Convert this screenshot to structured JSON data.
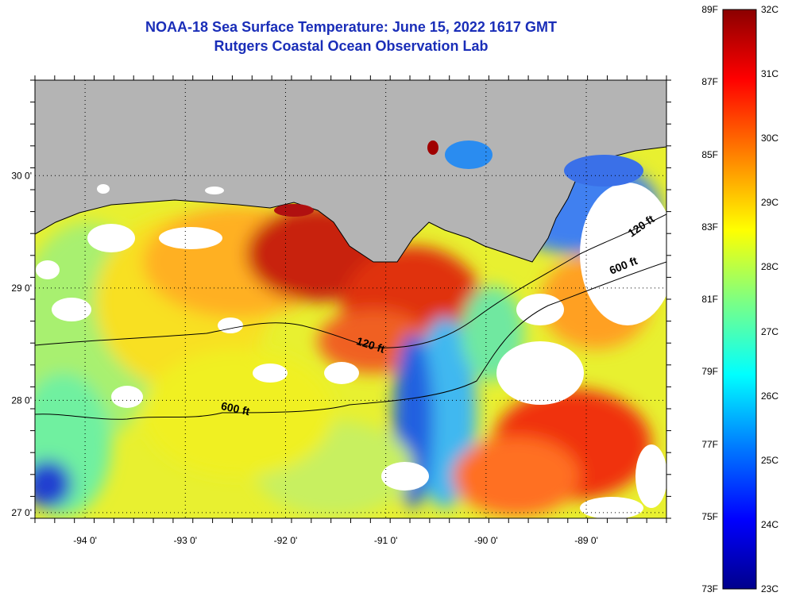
{
  "title": {
    "line1": "NOAA-18 Sea Surface Temperature:  June 15, 2022 1617 GMT",
    "line2": "Rutgers Coastal Ocean Observation Lab"
  },
  "map": {
    "lon_range": [
      -94.5,
      -88.2
    ],
    "lat_range": [
      26.95,
      30.85
    ],
    "lon_ticks": [
      {
        "value": -94,
        "label": "-94 0'"
      },
      {
        "value": -93,
        "label": "-93 0'"
      },
      {
        "value": -92,
        "label": "-92 0'"
      },
      {
        "value": -91,
        "label": "-91 0'"
      },
      {
        "value": -90,
        "label": "-90 0'"
      },
      {
        "value": -89,
        "label": "-89 0'"
      }
    ],
    "lat_ticks": [
      {
        "value": 30,
        "label": "30 0'"
      },
      {
        "value": 29,
        "label": "29 0'"
      },
      {
        "value": 28,
        "label": "28 0'"
      },
      {
        "value": 27,
        "label": "27 0'"
      }
    ],
    "contour_labels": [
      {
        "text": "120 ft",
        "lon": -91.3,
        "lat": 28.5
      },
      {
        "text": "600 ft",
        "lon": -92.65,
        "lat": 27.92
      },
      {
        "text": "600 ft",
        "lon": -88.75,
        "lat": 29.12
      },
      {
        "text": "120 ft",
        "lon": -88.55,
        "lat": 29.45
      }
    ],
    "colors": {
      "land": "#b4b4b4",
      "no_data": "#ffffff",
      "coastline": "#000000"
    }
  },
  "colorbar": {
    "fahrenheit_labels": [
      "89F",
      "87F",
      "85F",
      "83F",
      "81F",
      "79F",
      "77F",
      "75F",
      "73F"
    ],
    "celsius_labels": [
      "32C",
      "31C",
      "30C",
      "29C",
      "28C",
      "27C",
      "26C",
      "25C",
      "24C",
      "23C"
    ],
    "colors": [
      "#00008b",
      "#0000ff",
      "#0080ff",
      "#00ffff",
      "#80ff80",
      "#ffff00",
      "#ff8000",
      "#ff0000",
      "#8b0000"
    ]
  }
}
